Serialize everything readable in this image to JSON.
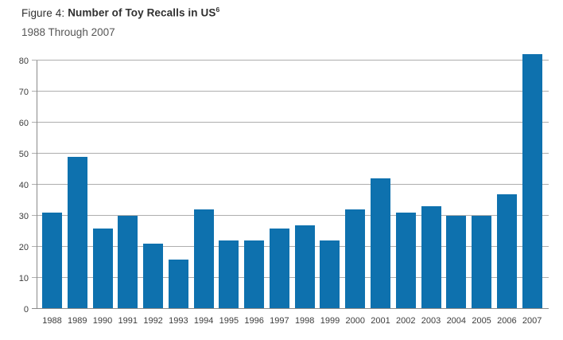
{
  "header": {
    "figure_label": "Figure 4:",
    "title": "Number of Toy Recalls in US",
    "title_superscript": "6",
    "subtitle": "1988 Through 2007"
  },
  "chart_data": {
    "type": "bar",
    "title": "Figure 4: Number of Toy Recalls in US",
    "subtitle": "1988 Through 2007",
    "categories": [
      "1988",
      "1989",
      "1990",
      "1991",
      "1992",
      "1993",
      "1994",
      "1995",
      "1996",
      "1997",
      "1998",
      "1999",
      "2000",
      "2001",
      "2002",
      "2003",
      "2004",
      "2005",
      "2006",
      "2007"
    ],
    "values": [
      31,
      49,
      26,
      30,
      21,
      16,
      32,
      22,
      22,
      26,
      27,
      22,
      32,
      42,
      31,
      33,
      30,
      30,
      37,
      82
    ],
    "xlabel": "",
    "ylabel": "",
    "ylim": [
      0,
      80
    ],
    "yticks": [
      0,
      10,
      20,
      30,
      40,
      50,
      60,
      70,
      80
    ],
    "grid": true,
    "legend": false,
    "bar_color": "#0E71AE",
    "gridline_color": "#AEAEAE",
    "axis_color": "#8A8A8A",
    "tick_label_color": "#3D3D3D"
  }
}
